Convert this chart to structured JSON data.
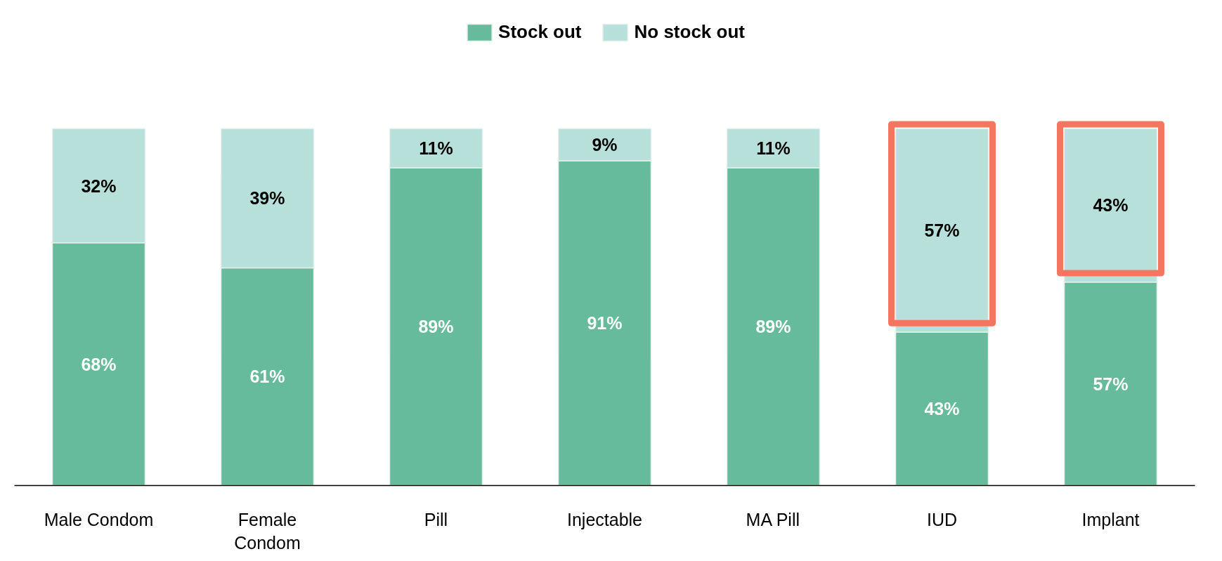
{
  "chart_data": {
    "type": "bar",
    "stacked": true,
    "categories": [
      "Male Condom",
      "Female Condom",
      "Pill",
      "Injectable",
      "MA Pill",
      "IUD",
      "Implant"
    ],
    "series": [
      {
        "name": "Stock out",
        "color": "#66bb9c",
        "values": [
          68,
          61,
          89,
          91,
          89,
          43,
          57
        ],
        "value_labels": [
          "68%",
          "61%",
          "89%",
          "91%",
          "89%",
          "43%",
          "57%"
        ]
      },
      {
        "name": "No stock out",
        "color": "#b8e0da",
        "values": [
          32,
          39,
          11,
          9,
          11,
          57,
          43
        ],
        "value_labels": [
          "32%",
          "39%",
          "11%",
          "9%",
          "11%",
          "57%",
          "43%"
        ]
      }
    ],
    "tick_labels": "x",
    "legend": "top",
    "grid": false
  }
}
